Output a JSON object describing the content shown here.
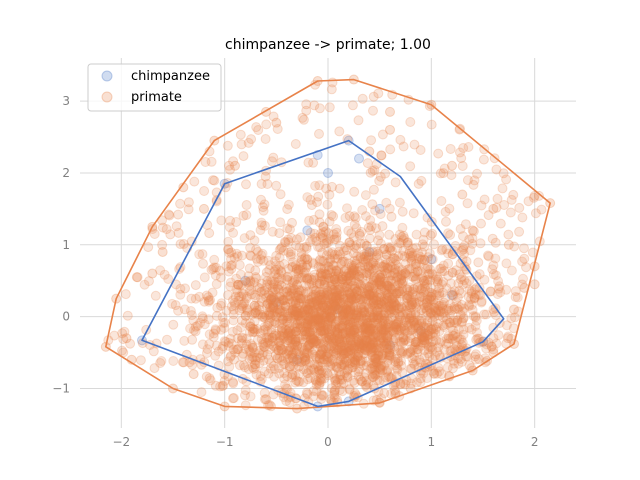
{
  "chart_data": {
    "type": "scatter",
    "title": "chimpanzee -> primate; 1.00",
    "xlabel": "",
    "ylabel": "",
    "xlim": [
      -2.4,
      2.4
    ],
    "ylim": [
      -1.55,
      3.6
    ],
    "x_ticks": [
      -2,
      -1,
      0,
      1,
      2
    ],
    "y_ticks": [
      -1,
      0,
      1,
      2,
      3
    ],
    "x_tick_labels": [
      "−2",
      "−1",
      "0",
      "1",
      "2"
    ],
    "y_tick_labels": [
      "−1",
      "0",
      "1",
      "2",
      "3"
    ],
    "grid": true,
    "legend_position": "top-left",
    "series": [
      {
        "name": "chimpanzee",
        "color": "#4472c4",
        "hull": [
          [
            0.2,
            2.45
          ],
          [
            0.7,
            1.95
          ],
          [
            1.7,
            -0.03
          ],
          [
            1.5,
            -0.35
          ],
          [
            0.2,
            -1.18
          ],
          [
            -0.1,
            -1.25
          ],
          [
            -1.8,
            -0.33
          ],
          [
            -1.0,
            1.85
          ]
        ],
        "points": [
          [
            0.2,
            2.45
          ],
          [
            -0.1,
            2.25
          ],
          [
            0.0,
            2.0
          ],
          [
            0.3,
            2.2
          ],
          [
            0.5,
            1.5
          ],
          [
            1.0,
            0.8
          ],
          [
            1.2,
            0.3
          ],
          [
            1.5,
            -0.35
          ],
          [
            0.2,
            -1.18
          ],
          [
            -0.1,
            -1.25
          ],
          [
            -1.8,
            -0.33
          ],
          [
            -1.0,
            1.85
          ],
          [
            -0.5,
            0.2
          ],
          [
            0.1,
            0.1
          ],
          [
            0.6,
            -0.4
          ],
          [
            -0.3,
            -0.6
          ],
          [
            0.4,
            0.9
          ],
          [
            -0.8,
            0.5
          ],
          [
            0.9,
            -0.2
          ],
          [
            -0.2,
            1.2
          ]
        ]
      },
      {
        "name": "primate",
        "color": "#e8834a",
        "hull": [
          [
            -0.1,
            3.28
          ],
          [
            0.25,
            3.3
          ],
          [
            1.0,
            2.95
          ],
          [
            2.15,
            1.58
          ],
          [
            1.8,
            -0.38
          ],
          [
            1.4,
            -0.75
          ],
          [
            0.5,
            -1.2
          ],
          [
            -0.3,
            -1.28
          ],
          [
            -1.0,
            -1.25
          ],
          [
            -1.5,
            -1.0
          ],
          [
            -2.15,
            -0.42
          ],
          [
            -2.05,
            0.25
          ],
          [
            -1.7,
            1.25
          ],
          [
            -1.1,
            2.45
          ]
        ],
        "cluster_center": [
          0.2,
          0.0
        ],
        "cluster_spread": [
          0.62,
          0.55
        ],
        "points": [
          [
            -0.1,
            3.28
          ],
          [
            0.25,
            3.3
          ],
          [
            1.0,
            2.95
          ],
          [
            2.15,
            1.58
          ],
          [
            1.8,
            -0.38
          ],
          [
            1.4,
            -0.75
          ],
          [
            0.5,
            -1.2
          ],
          [
            -0.3,
            -1.28
          ],
          [
            -1.0,
            -1.25
          ],
          [
            -1.5,
            -1.0
          ],
          [
            -2.15,
            -0.42
          ],
          [
            -2.05,
            0.25
          ],
          [
            -1.7,
            1.25
          ],
          [
            -1.1,
            2.45
          ],
          [
            -0.6,
            2.85
          ],
          [
            -0.5,
            2.7
          ],
          [
            0.6,
            2.85
          ],
          [
            0.6,
            2.6
          ],
          [
            1.2,
            2.1
          ],
          [
            1.6,
            1.5
          ],
          [
            1.75,
            1.0
          ],
          [
            2.0,
            0.7
          ],
          [
            1.9,
            0.4
          ],
          [
            2.0,
            0.45
          ],
          [
            1.8,
            0.1
          ],
          [
            1.6,
            -0.5
          ],
          [
            -1.4,
            1.8
          ],
          [
            -1.7,
            0.6
          ],
          [
            -1.85,
            0.55
          ],
          [
            -1.95,
            -0.3
          ],
          [
            -1.9,
            -0.6
          ],
          [
            -1.3,
            -0.8
          ],
          [
            -1.2,
            1.5
          ],
          [
            0.8,
            -1.0
          ],
          [
            -0.6,
            -1.15
          ],
          [
            1.3,
            1.7
          ],
          [
            -0.9,
            2.1
          ],
          [
            0.4,
            2.3
          ],
          [
            1.4,
            1.2
          ],
          [
            -1.6,
            0.9
          ]
        ]
      }
    ]
  }
}
